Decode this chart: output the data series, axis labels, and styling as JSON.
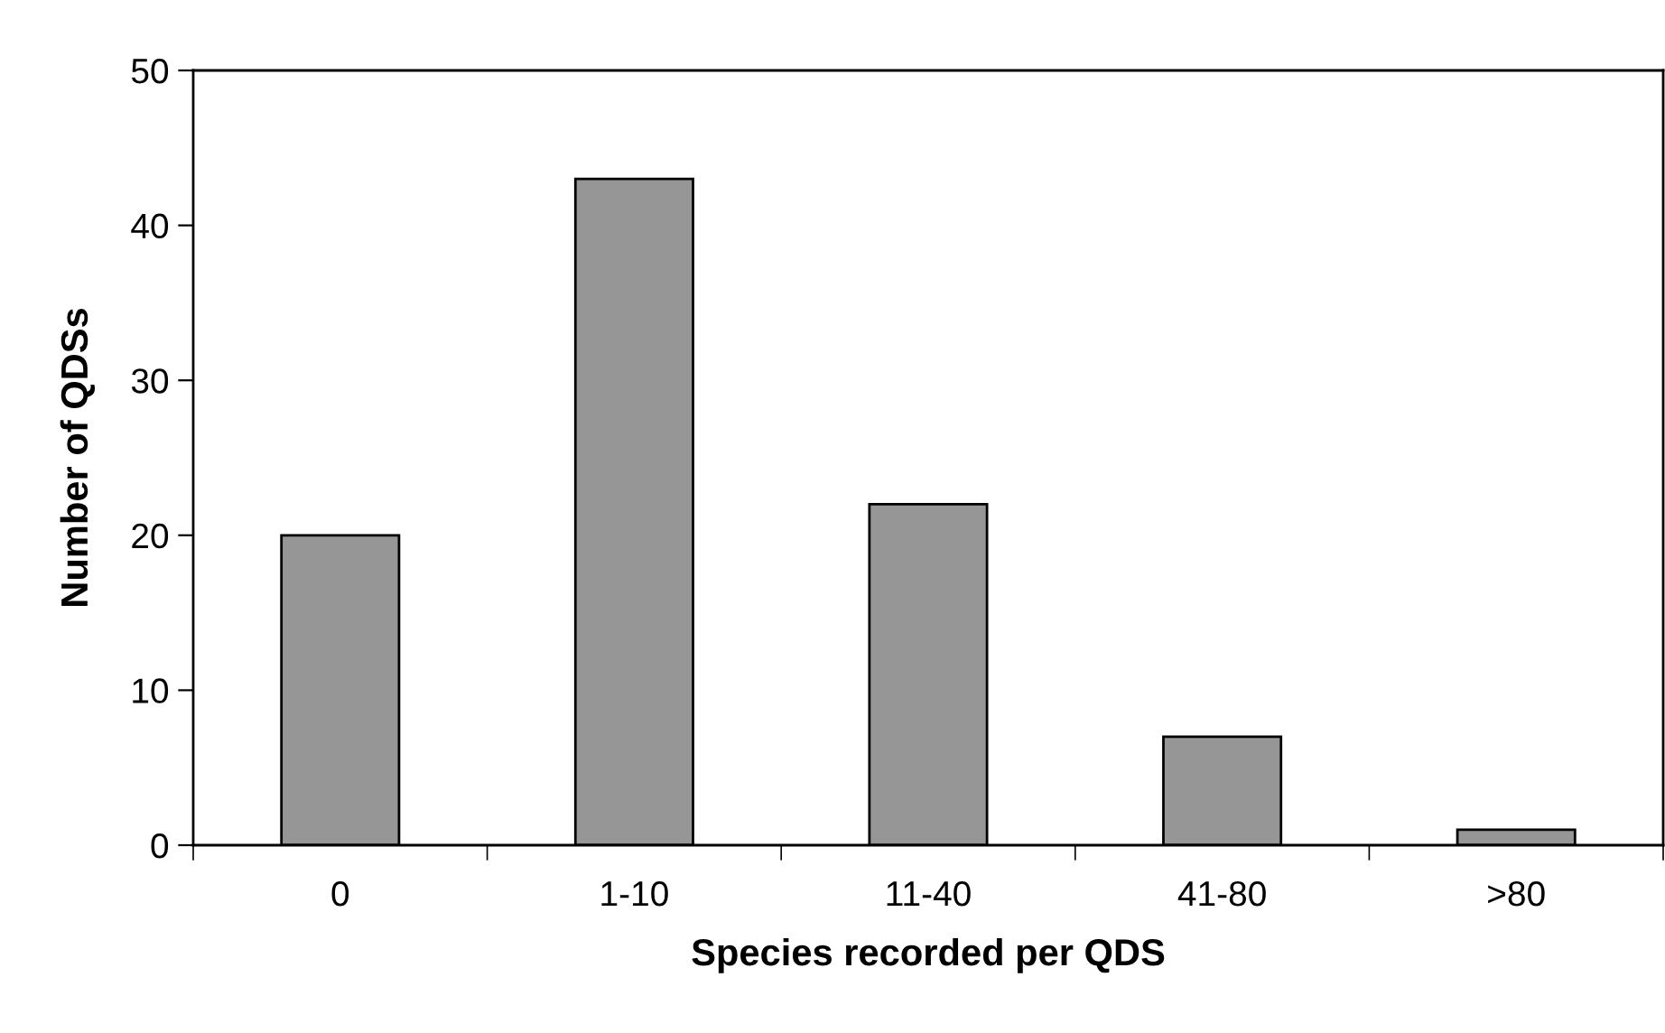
{
  "chart_data": {
    "type": "bar",
    "xlabel": "Species recorded per QDS",
    "ylabel": "Number of QDSs",
    "categories": [
      "0",
      "1-10",
      "11-40",
      "41-80",
      ">80"
    ],
    "values": [
      20,
      43,
      22,
      7,
      1
    ],
    "color": "#969696",
    "ylim": [
      0,
      50
    ],
    "yticks": [
      0,
      10,
      20,
      30,
      40,
      50
    ],
    "grid": false,
    "legend": false
  }
}
